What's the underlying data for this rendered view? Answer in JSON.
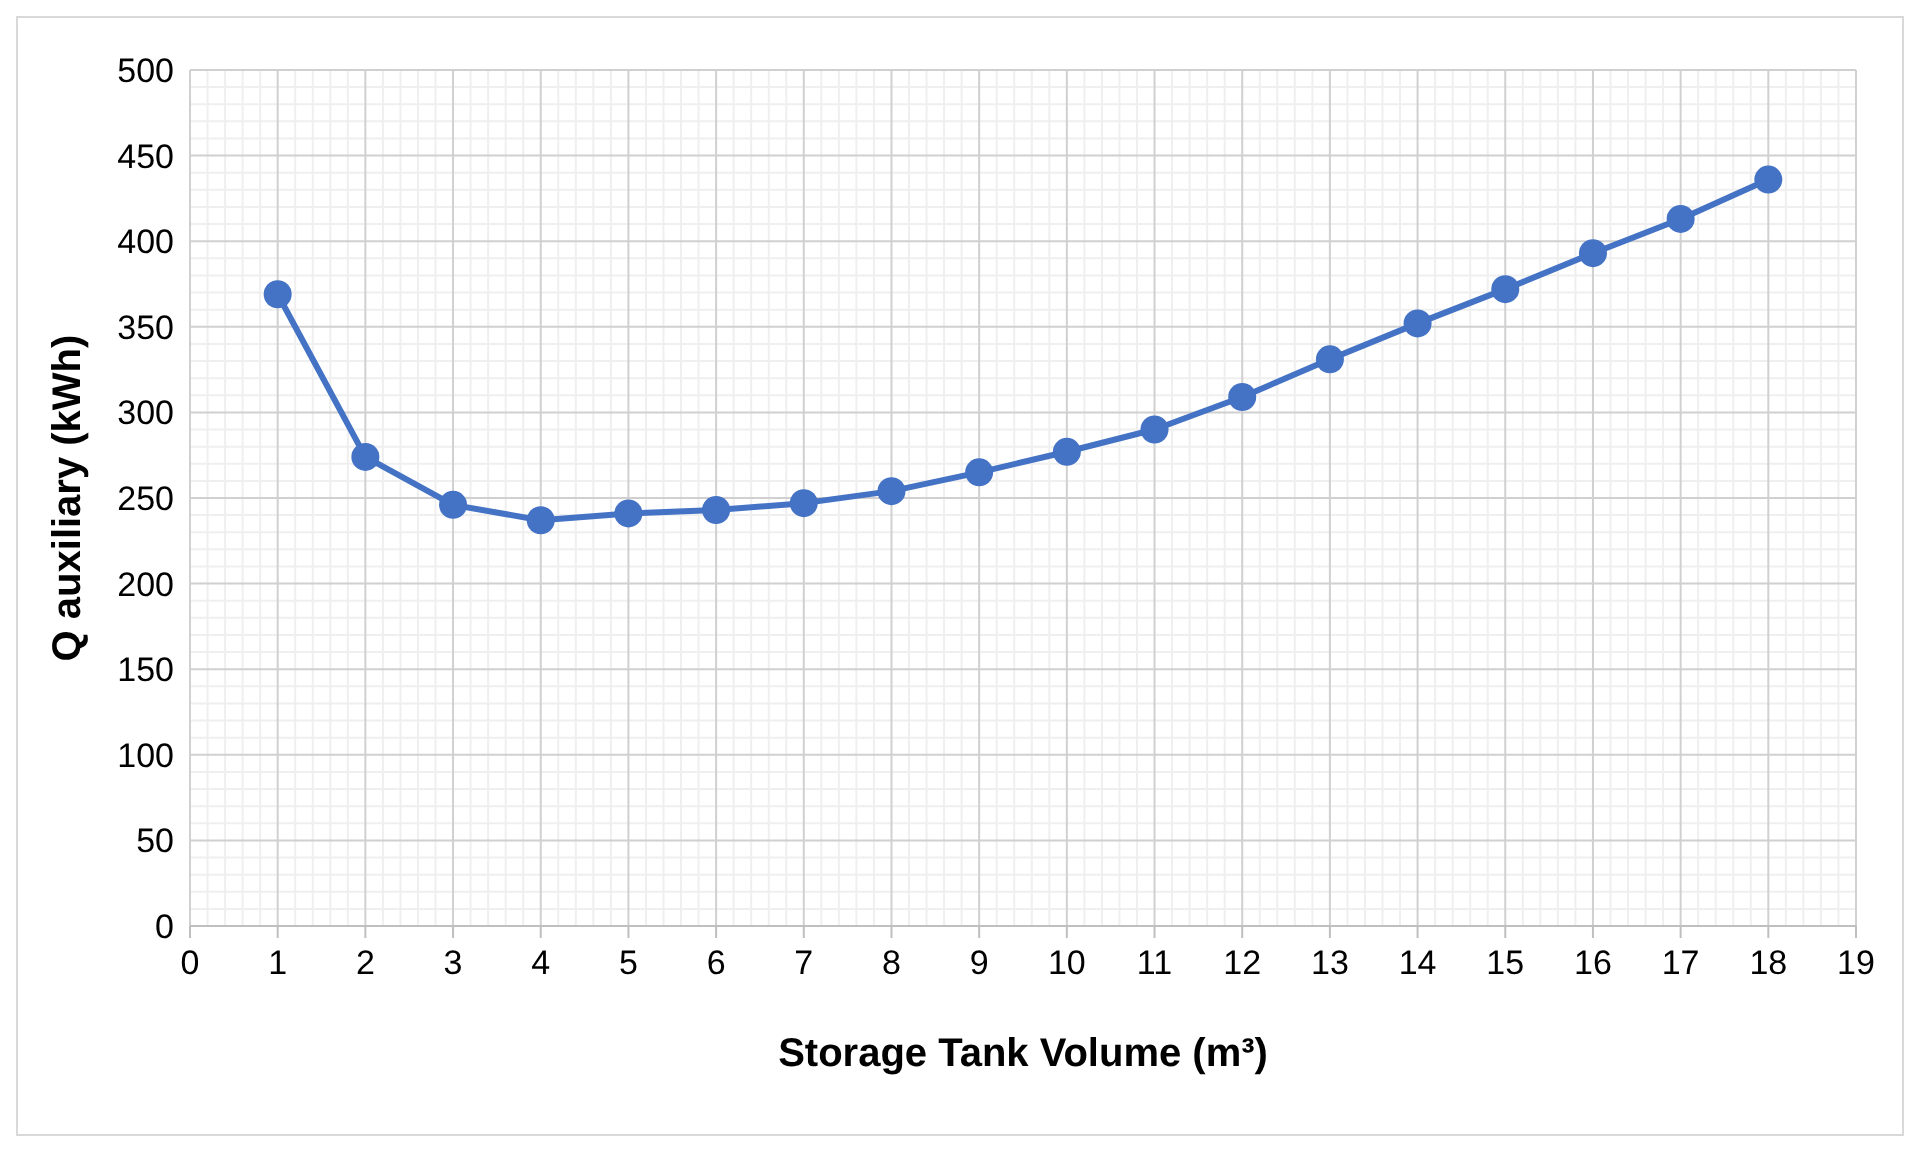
{
  "chart_data": {
    "type": "line",
    "xlabel": "Storage Tank Volume (m³)",
    "ylabel": "Q auxiliary (kWh)",
    "x": [
      1,
      2,
      3,
      4,
      5,
      6,
      7,
      8,
      9,
      10,
      11,
      12,
      13,
      14,
      15,
      16,
      17,
      18
    ],
    "series": [
      {
        "color": "#4472c4",
        "values": [
          369,
          274,
          246,
          237,
          241,
          243,
          247,
          254,
          265,
          277,
          290,
          309,
          331,
          352,
          372,
          393,
          413,
          436
        ]
      }
    ],
    "xlim": [
      0,
      19
    ],
    "xticks": [
      0,
      1,
      2,
      3,
      4,
      5,
      6,
      7,
      8,
      9,
      10,
      11,
      12,
      13,
      14,
      15,
      16,
      17,
      18,
      19
    ],
    "ylim": [
      0,
      500
    ],
    "yticks": [
      0,
      50,
      100,
      150,
      200,
      250,
      300,
      350,
      400,
      450,
      500
    ],
    "grid": true,
    "marker": "circle",
    "line_style": "solid"
  }
}
